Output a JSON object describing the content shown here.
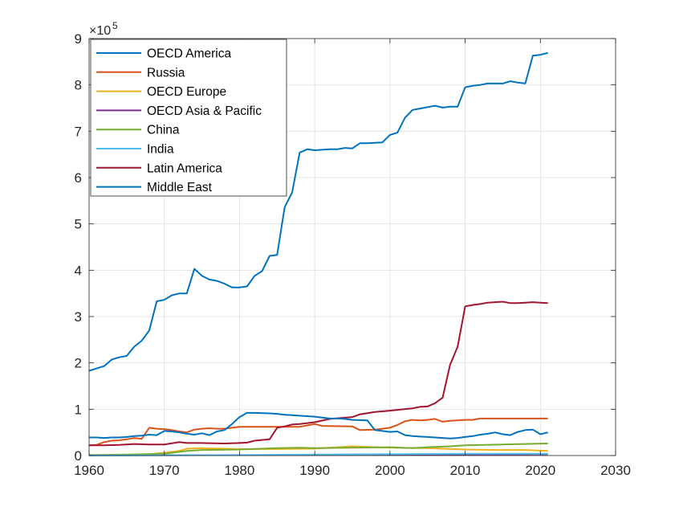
{
  "chart_data": {
    "type": "line",
    "title": "",
    "xlabel": "",
    "ylabel": "",
    "xlim": [
      1960,
      2030
    ],
    "ylim": [
      0,
      900000
    ],
    "x_ticks": [
      1960,
      1970,
      1980,
      1990,
      2000,
      2010,
      2020,
      2030
    ],
    "x_tick_labels": [
      "1960",
      "1970",
      "1980",
      "1990",
      "2000",
      "2010",
      "2020",
      "2030"
    ],
    "y_ticks": [
      0,
      100000,
      200000,
      300000,
      400000,
      500000,
      600000,
      700000,
      800000,
      900000
    ],
    "y_tick_labels": [
      "0",
      "1",
      "2",
      "3",
      "4",
      "5",
      "6",
      "7",
      "8",
      "9"
    ],
    "y_exponent_base": "×10",
    "y_exponent_power": "5",
    "grid": true,
    "legend_position": "top-left",
    "series": [
      {
        "name": "OECD America",
        "color": "#0072BD",
        "points": [
          [
            1960,
            183000
          ],
          [
            1961,
            188000
          ],
          [
            1962,
            193000
          ],
          [
            1963,
            207000
          ],
          [
            1964,
            212000
          ],
          [
            1965,
            215000
          ],
          [
            1966,
            235000
          ],
          [
            1967,
            248000
          ],
          [
            1968,
            270000
          ],
          [
            1969,
            333000
          ],
          [
            1970,
            336000
          ],
          [
            1971,
            346000
          ],
          [
            1972,
            350000
          ],
          [
            1973,
            350000
          ],
          [
            1974,
            403000
          ],
          [
            1975,
            388000
          ],
          [
            1976,
            380000
          ],
          [
            1977,
            377000
          ],
          [
            1978,
            371000
          ],
          [
            1979,
            363000
          ],
          [
            1980,
            363000
          ],
          [
            1981,
            365000
          ],
          [
            1982,
            388000
          ],
          [
            1983,
            398000
          ],
          [
            1984,
            431000
          ],
          [
            1985,
            433000
          ],
          [
            1986,
            536000
          ],
          [
            1987,
            568000
          ],
          [
            1988,
            654000
          ],
          [
            1989,
            661000
          ],
          [
            1990,
            659000
          ],
          [
            1991,
            660000
          ],
          [
            1992,
            661000
          ],
          [
            1993,
            661000
          ],
          [
            1994,
            664000
          ],
          [
            1995,
            663000
          ],
          [
            1996,
            674000
          ],
          [
            1997,
            674000
          ],
          [
            1998,
            675000
          ],
          [
            1999,
            676000
          ],
          [
            2000,
            692000
          ],
          [
            2001,
            697000
          ],
          [
            2002,
            729000
          ],
          [
            2003,
            746000
          ],
          [
            2004,
            749000
          ],
          [
            2005,
            752000
          ],
          [
            2006,
            755000
          ],
          [
            2007,
            751000
          ],
          [
            2008,
            753000
          ],
          [
            2009,
            753000
          ],
          [
            2010,
            795000
          ],
          [
            2011,
            798000
          ],
          [
            2012,
            800000
          ],
          [
            2013,
            803000
          ],
          [
            2014,
            803000
          ],
          [
            2015,
            803000
          ],
          [
            2016,
            808000
          ],
          [
            2017,
            805000
          ],
          [
            2018,
            803000
          ],
          [
            2019,
            863000
          ],
          [
            2020,
            865000
          ],
          [
            2021,
            869000
          ]
        ]
      },
      {
        "name": "Russia",
        "color": "#D95319",
        "points": [
          [
            1960,
            22000
          ],
          [
            1961,
            23000
          ],
          [
            1962,
            29000
          ],
          [
            1963,
            32000
          ],
          [
            1964,
            33000
          ],
          [
            1965,
            35000
          ],
          [
            1966,
            38000
          ],
          [
            1967,
            36000
          ],
          [
            1968,
            60000
          ],
          [
            1969,
            58000
          ],
          [
            1970,
            57000
          ],
          [
            1971,
            55000
          ],
          [
            1972,
            52000
          ],
          [
            1973,
            50000
          ],
          [
            1974,
            56000
          ],
          [
            1975,
            58000
          ],
          [
            1976,
            59000
          ],
          [
            1977,
            58000
          ],
          [
            1978,
            58000
          ],
          [
            1979,
            60000
          ],
          [
            1980,
            62000
          ],
          [
            1985,
            62000
          ],
          [
            1988,
            62000
          ],
          [
            1990,
            68000
          ],
          [
            1991,
            64000
          ],
          [
            1995,
            63000
          ],
          [
            1996,
            55000
          ],
          [
            1998,
            56000
          ],
          [
            1999,
            58000
          ],
          [
            2000,
            60000
          ],
          [
            2001,
            66000
          ],
          [
            2002,
            74000
          ],
          [
            2003,
            77000
          ],
          [
            2004,
            76000
          ],
          [
            2005,
            77000
          ],
          [
            2006,
            79000
          ],
          [
            2007,
            73000
          ],
          [
            2008,
            75000
          ],
          [
            2010,
            77000
          ],
          [
            2011,
            77000
          ],
          [
            2012,
            80000
          ],
          [
            2021,
            80000
          ]
        ]
      },
      {
        "name": "OECD Europe",
        "color": "#EDB120",
        "points": [
          [
            1960,
            1000
          ],
          [
            1965,
            1000
          ],
          [
            1968,
            3000
          ],
          [
            1970,
            6000
          ],
          [
            1972,
            10000
          ],
          [
            1973,
            15000
          ],
          [
            1975,
            16000
          ],
          [
            1980,
            14000
          ],
          [
            1985,
            14000
          ],
          [
            1990,
            15000
          ],
          [
            1995,
            20000
          ],
          [
            2000,
            17000
          ],
          [
            2005,
            16000
          ],
          [
            2010,
            13000
          ],
          [
            2015,
            12000
          ],
          [
            2018,
            12000
          ],
          [
            2021,
            10000
          ]
        ]
      },
      {
        "name": "OECD Asia & Pacific",
        "color": "#7E2F8E",
        "points": [
          [
            1960,
            500
          ],
          [
            1980,
            800
          ],
          [
            1990,
            1200
          ],
          [
            2000,
            2000
          ],
          [
            2010,
            2500
          ],
          [
            2021,
            2800
          ]
        ]
      },
      {
        "name": "China",
        "color": "#77AC30",
        "points": [
          [
            1960,
            1000
          ],
          [
            1965,
            2000
          ],
          [
            1970,
            4000
          ],
          [
            1973,
            10000
          ],
          [
            1975,
            12000
          ],
          [
            1980,
            13000
          ],
          [
            1985,
            16000
          ],
          [
            1988,
            17000
          ],
          [
            1990,
            16000
          ],
          [
            1995,
            17000
          ],
          [
            2000,
            18000
          ],
          [
            2003,
            16000
          ],
          [
            2005,
            18000
          ],
          [
            2008,
            20000
          ],
          [
            2010,
            22000
          ],
          [
            2015,
            24000
          ],
          [
            2021,
            26000
          ]
        ]
      },
      {
        "name": "India",
        "color": "#4DBEEE",
        "points": [
          [
            1960,
            200
          ],
          [
            1980,
            1000
          ],
          [
            1990,
            2000
          ],
          [
            2000,
            3000
          ],
          [
            2010,
            4000
          ],
          [
            2021,
            4000
          ]
        ]
      },
      {
        "name": "Latin America",
        "color": "#A2142F",
        "points": [
          [
            1960,
            22000
          ],
          [
            1962,
            22000
          ],
          [
            1964,
            23000
          ],
          [
            1966,
            25000
          ],
          [
            1968,
            24000
          ],
          [
            1970,
            24000
          ],
          [
            1972,
            29000
          ],
          [
            1973,
            27000
          ],
          [
            1975,
            27000
          ],
          [
            1978,
            26000
          ],
          [
            1980,
            27000
          ],
          [
            1981,
            28000
          ],
          [
            1982,
            32000
          ],
          [
            1984,
            35000
          ],
          [
            1985,
            60000
          ],
          [
            1986,
            63000
          ],
          [
            1987,
            67000
          ],
          [
            1988,
            68000
          ],
          [
            1990,
            72000
          ],
          [
            1992,
            79000
          ],
          [
            1995,
            83000
          ],
          [
            1996,
            89000
          ],
          [
            1998,
            94000
          ],
          [
            2000,
            97000
          ],
          [
            2003,
            102000
          ],
          [
            2004,
            105000
          ],
          [
            2005,
            106000
          ],
          [
            2006,
            113000
          ],
          [
            2007,
            125000
          ],
          [
            2008,
            196000
          ],
          [
            2009,
            235000
          ],
          [
            2010,
            322000
          ],
          [
            2011,
            325000
          ],
          [
            2012,
            327000
          ],
          [
            2013,
            330000
          ],
          [
            2014,
            331000
          ],
          [
            2015,
            332000
          ],
          [
            2016,
            329000
          ],
          [
            2017,
            329000
          ],
          [
            2018,
            330000
          ],
          [
            2019,
            331000
          ],
          [
            2020,
            330000
          ],
          [
            2021,
            329000
          ]
        ]
      },
      {
        "name": "Middle East",
        "color": "#0072BD",
        "points": [
          [
            1960,
            39000
          ],
          [
            1961,
            39000
          ],
          [
            1962,
            38000
          ],
          [
            1963,
            39000
          ],
          [
            1964,
            39000
          ],
          [
            1965,
            40000
          ],
          [
            1966,
            42000
          ],
          [
            1967,
            43000
          ],
          [
            1968,
            45000
          ],
          [
            1969,
            44000
          ],
          [
            1970,
            53000
          ],
          [
            1971,
            52000
          ],
          [
            1972,
            50000
          ],
          [
            1973,
            47000
          ],
          [
            1974,
            45000
          ],
          [
            1975,
            48000
          ],
          [
            1976,
            44000
          ],
          [
            1977,
            52000
          ],
          [
            1978,
            55000
          ],
          [
            1979,
            68000
          ],
          [
            1980,
            83000
          ],
          [
            1981,
            92000
          ],
          [
            1982,
            92000
          ],
          [
            1984,
            91000
          ],
          [
            1985,
            90000
          ],
          [
            1986,
            88000
          ],
          [
            1987,
            87000
          ],
          [
            1988,
            86000
          ],
          [
            1990,
            84000
          ],
          [
            1991,
            82000
          ],
          [
            1992,
            80000
          ],
          [
            1993,
            80000
          ],
          [
            1994,
            79000
          ],
          [
            1995,
            77000
          ],
          [
            1997,
            76000
          ],
          [
            1998,
            55000
          ],
          [
            1999,
            53000
          ],
          [
            2000,
            51000
          ],
          [
            2001,
            52000
          ],
          [
            2002,
            44000
          ],
          [
            2003,
            42000
          ],
          [
            2004,
            41000
          ],
          [
            2005,
            40000
          ],
          [
            2006,
            39000
          ],
          [
            2007,
            38000
          ],
          [
            2008,
            37000
          ],
          [
            2009,
            38000
          ],
          [
            2010,
            40000
          ],
          [
            2011,
            42000
          ],
          [
            2012,
            45000
          ],
          [
            2013,
            47000
          ],
          [
            2014,
            50000
          ],
          [
            2015,
            46000
          ],
          [
            2016,
            44000
          ],
          [
            2017,
            51000
          ],
          [
            2018,
            55000
          ],
          [
            2019,
            56000
          ],
          [
            2020,
            46000
          ],
          [
            2021,
            50000
          ]
        ]
      }
    ]
  }
}
